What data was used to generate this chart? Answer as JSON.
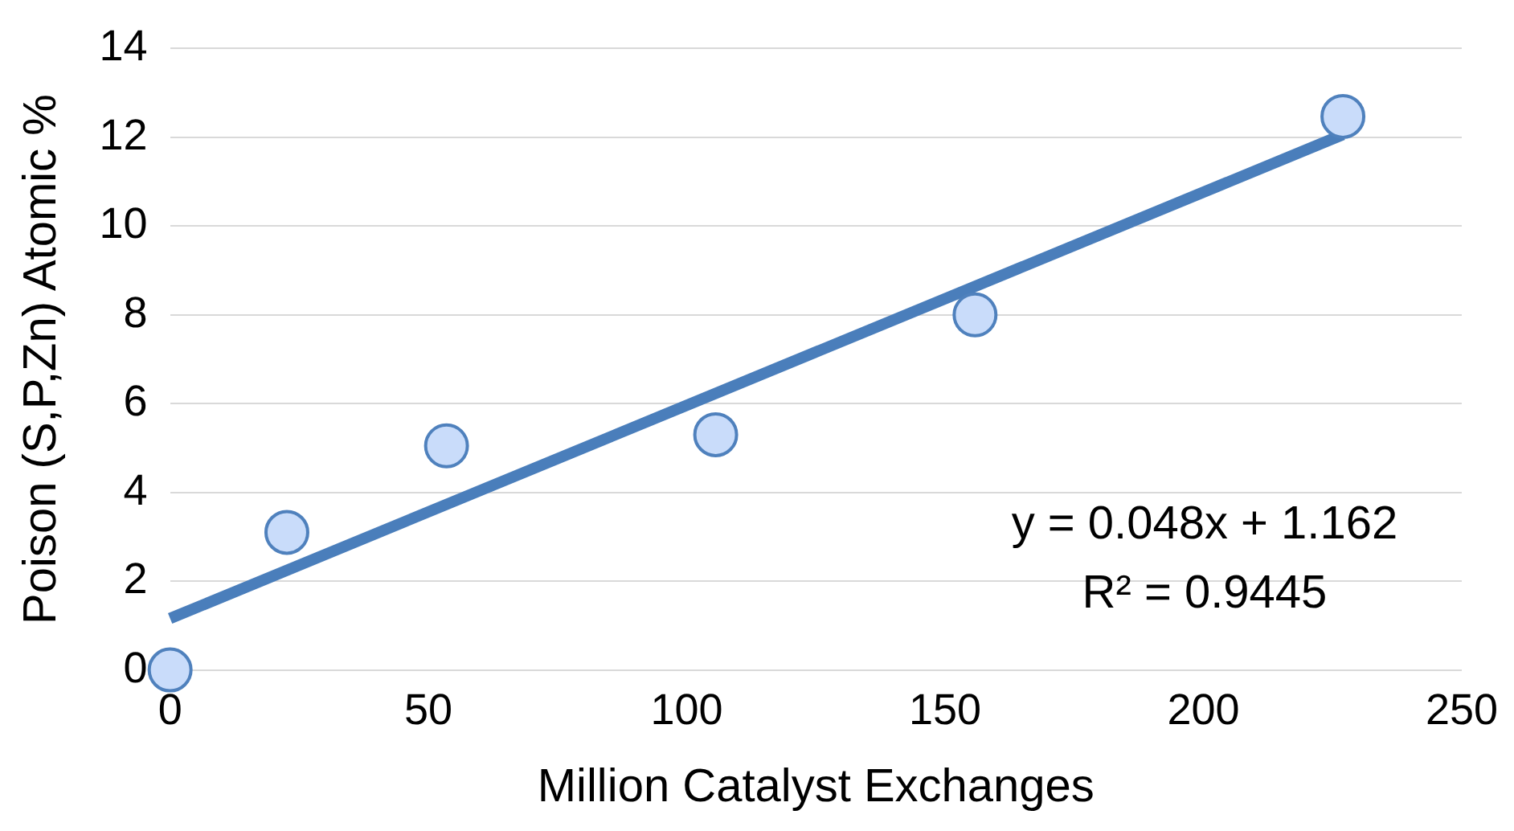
{
  "chart_data": {
    "type": "scatter",
    "xlabel": "Million Catalyst Exchanges",
    "ylabel": "Poison (S,P,Zn) Atomic %",
    "xlim": [
      0,
      250
    ],
    "xticks": [
      0,
      50,
      100,
      150,
      200,
      250
    ],
    "ylim": [
      0,
      14
    ],
    "yticks": [
      0,
      2,
      4,
      6,
      8,
      10,
      12,
      14
    ],
    "grid": "y",
    "legend": false,
    "marker": "circle",
    "series": [
      {
        "type": "scatter",
        "color": "#c9dcfa",
        "x": [
          0,
          22.6,
          53.5,
          105.6,
          155.8,
          227
        ],
        "values": [
          0,
          3.1,
          5.05,
          5.3,
          8.0,
          12.47
        ]
      },
      {
        "type": "line",
        "color": "#4a7ebb",
        "x": [
          0,
          227
        ],
        "values": [
          1.16,
          12.06
        ],
        "marker": "none"
      }
    ],
    "annotations": [
      "y = 0.048x + 1.162",
      "R² = 0.9445"
    ]
  }
}
